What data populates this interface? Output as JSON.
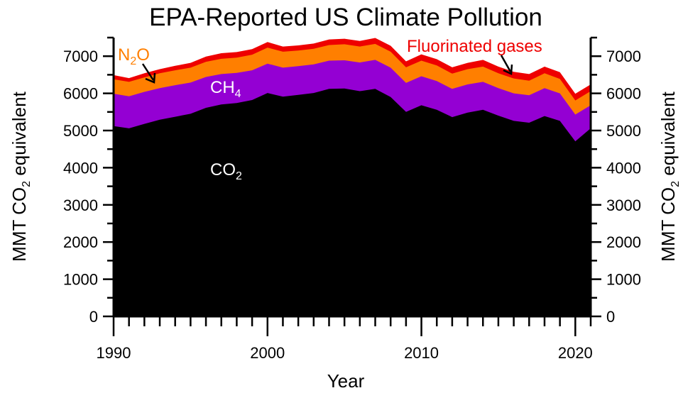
{
  "chart_data": {
    "type": "area",
    "stacked": true,
    "title": "EPA-Reported US Climate Pollution",
    "xlabel": "Year",
    "ylabel": {
      "pre": "MMT CO",
      "sub": "2",
      "post": " equivalent"
    },
    "xlim": [
      1990,
      2021
    ],
    "ylim": [
      0,
      7500
    ],
    "x_ticks": [
      1990,
      2000,
      2010,
      2020
    ],
    "y_ticks": [
      0,
      1000,
      2000,
      3000,
      4000,
      5000,
      6000,
      7000
    ],
    "grid": false,
    "x": [
      1990,
      1991,
      1992,
      1993,
      1994,
      1995,
      1996,
      1997,
      1998,
      1999,
      2000,
      2001,
      2002,
      2003,
      2004,
      2005,
      2006,
      2007,
      2008,
      2009,
      2010,
      2011,
      2012,
      2013,
      2014,
      2015,
      2016,
      2017,
      2018,
      2019,
      2020,
      2021
    ],
    "series": [
      {
        "name": "CO2",
        "label": {
          "pre": "CO",
          "sub": "2"
        },
        "color": "#000000",
        "values": [
          5120,
          5060,
          5180,
          5290,
          5370,
          5450,
          5610,
          5700,
          5740,
          5820,
          6010,
          5910,
          5960,
          6010,
          6120,
          6130,
          6060,
          6120,
          5900,
          5500,
          5680,
          5560,
          5360,
          5480,
          5560,
          5400,
          5260,
          5210,
          5390,
          5260,
          4710,
          5060
        ]
      },
      {
        "name": "CH4",
        "label": {
          "pre": "CH",
          "sub": "4"
        },
        "color": "#9400D3",
        "values": [
          870,
          860,
          860,
          850,
          850,
          840,
          830,
          820,
          810,
          800,
          790,
          780,
          770,
          770,
          760,
          760,
          770,
          780,
          790,
          780,
          780,
          770,
          760,
          760,
          750,
          740,
          740,
          740,
          750,
          740,
          720,
          620
        ]
      },
      {
        "name": "N2O",
        "label": {
          "pre": "N",
          "sub": "2",
          "post": "O"
        },
        "color": "#FF7F00",
        "values": [
          390,
          390,
          390,
          400,
          400,
          400,
          410,
          410,
          410,
          420,
          430,
          430,
          420,
          420,
          420,
          430,
          430,
          430,
          430,
          420,
          420,
          420,
          410,
          410,
          410,
          400,
          400,
          390,
          400,
          390,
          380,
          380
        ]
      },
      {
        "name": "Fluorinated gases",
        "label": {
          "pre": "Fluorinated gases"
        },
        "color": "#EE0000",
        "values": [
          110,
          100,
          110,
          110,
          120,
          130,
          140,
          150,
          150,
          150,
          150,
          140,
          140,
          140,
          150,
          150,
          150,
          160,
          160,
          160,
          170,
          170,
          170,
          170,
          180,
          180,
          180,
          180,
          180,
          180,
          180,
          180
        ]
      }
    ]
  }
}
